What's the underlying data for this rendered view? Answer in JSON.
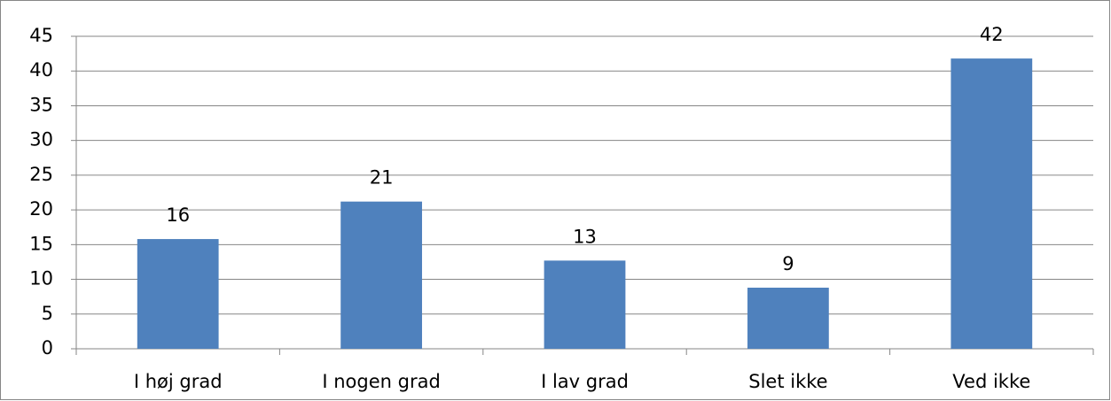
{
  "chart_data": {
    "type": "bar",
    "categories": [
      "I høj grad",
      "I nogen grad",
      "I lav grad",
      "Slet ikke",
      "Ved ikke"
    ],
    "values": [
      15.8,
      21.2,
      12.7,
      8.8,
      41.8
    ],
    "value_labels": [
      "16",
      "21",
      "13",
      "9",
      "42"
    ],
    "color": "#4f81bd",
    "ylim": [
      0,
      45
    ],
    "yticks": [
      0,
      5,
      10,
      15,
      20,
      25,
      30,
      35,
      40,
      45
    ],
    "grid": true
  }
}
